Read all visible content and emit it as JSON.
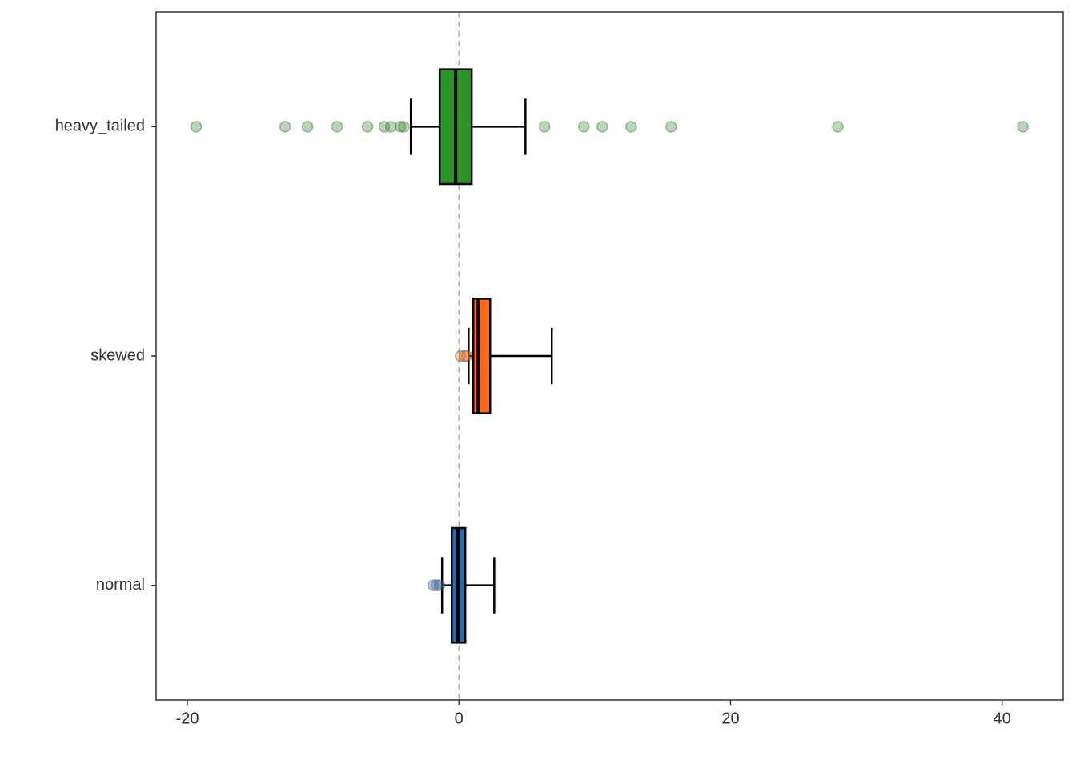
{
  "chart_data": {
    "type": "boxplot",
    "orientation": "horizontal",
    "categories": [
      "normal",
      "skewed",
      "heavy_tailed"
    ],
    "xlim": [
      -22.3,
      44.5
    ],
    "xticks": [
      -20,
      0,
      20,
      40
    ],
    "ref_line": 0,
    "grid": false,
    "series": [
      {
        "name": "normal",
        "color": "#2b6cb0",
        "whislo": -1.24,
        "q1": -0.53,
        "median": -0.06,
        "q3": 0.47,
        "whishi": 2.6,
        "outliers": [
          -1.89,
          -1.65,
          -1.42
        ]
      },
      {
        "name": "skewed",
        "color": "#ff6a13",
        "whislo": 0.71,
        "q1": 1.06,
        "median": 1.42,
        "q3": 2.3,
        "whishi": 6.84,
        "outliers": [
          0.12,
          0.41,
          0.59
        ]
      },
      {
        "name": "heavy_tailed",
        "color": "#2a9424",
        "whislo": -3.54,
        "q1": -1.42,
        "median": -0.24,
        "q3": 0.94,
        "whishi": 4.9,
        "outliers": [
          -19.35,
          -12.8,
          -11.15,
          -8.97,
          -6.73,
          -5.49,
          -5.01,
          -4.31,
          -4.07,
          6.31,
          9.2,
          10.56,
          12.68,
          15.63,
          27.9,
          41.53
        ]
      }
    ]
  }
}
